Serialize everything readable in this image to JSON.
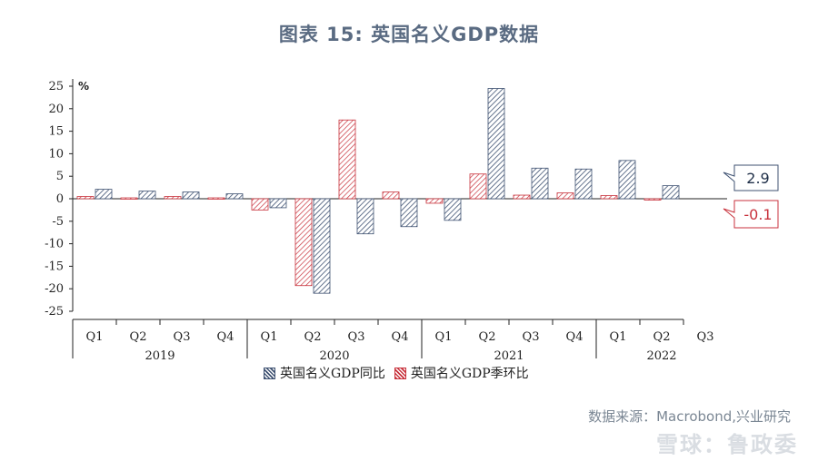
{
  "title": "图表 15:   英国名义GDP数据",
  "source": "数据来源：Macrobond,兴业研究",
  "watermark": "雪球：鲁政委",
  "colors": {
    "yoy": "#3f5272",
    "qoq": "#c8323c"
  },
  "chart_data": {
    "type": "bar",
    "ylabel": "%",
    "ylim": [
      -25,
      25
    ],
    "yticks": [
      25,
      20,
      15,
      10,
      5,
      0,
      -5,
      -10,
      -15,
      -20,
      -25
    ],
    "categories": [
      "Q1",
      "Q2",
      "Q3",
      "Q4",
      "Q1",
      "Q2",
      "Q3",
      "Q4",
      "Q1",
      "Q2",
      "Q3",
      "Q4",
      "Q1",
      "Q2",
      "Q3"
    ],
    "years": [
      {
        "label": "2019",
        "start": 0,
        "end": 3
      },
      {
        "label": "2020",
        "start": 4,
        "end": 7
      },
      {
        "label": "2021",
        "start": 8,
        "end": 11
      },
      {
        "label": "2022",
        "start": 12,
        "end": 14
      }
    ],
    "series": [
      {
        "name": "英国名义GDP季环比",
        "key": "qoq",
        "values": [
          0.5,
          0.2,
          0.5,
          0.2,
          -2.5,
          -19.3,
          17.5,
          1.5,
          -1.0,
          5.5,
          0.8,
          1.3,
          0.7,
          -0.1,
          null
        ]
      },
      {
        "name": "英国名义GDP同比",
        "key": "yoy",
        "values": [
          2.1,
          1.7,
          1.5,
          1.1,
          -2.0,
          -21.0,
          -7.8,
          -6.2,
          -4.8,
          24.5,
          6.8,
          6.6,
          8.5,
          2.9,
          null
        ]
      }
    ],
    "callouts": [
      {
        "label": "2.9",
        "series": "yoy"
      },
      {
        "label": "-0.1",
        "series": "qoq"
      }
    ]
  }
}
